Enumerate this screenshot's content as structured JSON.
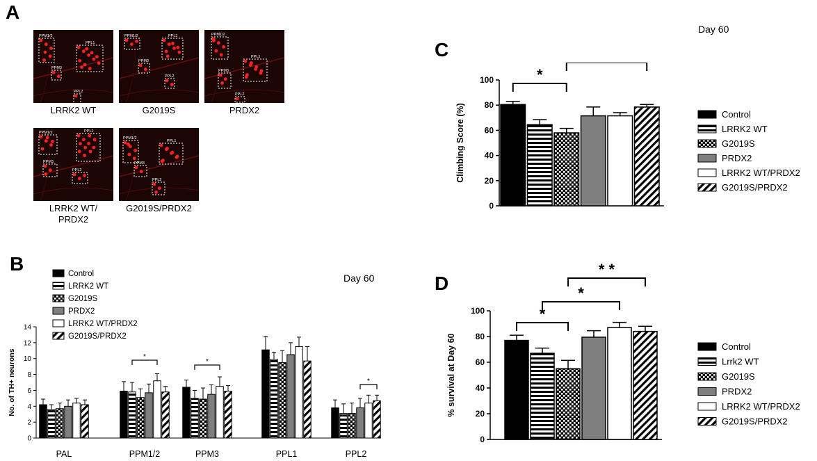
{
  "panels": {
    "a": {
      "letter": "A"
    },
    "b": {
      "letter": "B",
      "day_label": "Day 60"
    },
    "c": {
      "letter": "C",
      "day_label": "Day 60"
    },
    "d": {
      "letter": "D"
    }
  },
  "images": [
    {
      "caption": "LRRK2 WT",
      "labels": [
        "PPM1/2",
        "PPL1",
        "PPM3",
        "PPL2"
      ]
    },
    {
      "caption": "G2019S",
      "labels": [
        "PPM1/2",
        "PPL1",
        "PPM3",
        "PPL2"
      ]
    },
    {
      "caption": "PRDX2",
      "labels": [
        "PPM1/2",
        "PPL1",
        "PPM3",
        "PPL2"
      ]
    },
    {
      "caption": "LRRK2 WT/\nPRDX2",
      "labels": [
        "PPM1/2",
        "PPL1",
        "PPM3",
        "PPL2"
      ]
    },
    {
      "caption": "G2019S/PRDX2",
      "labels": [
        "PPM1/2",
        "PPL1",
        "PPM3",
        "PPL2"
      ]
    }
  ],
  "colors": {
    "black": "#000000",
    "gray": "#7f7f7f",
    "white": "#ffffff",
    "signal_red": "#ff2020"
  },
  "chart_data": [
    {
      "id": "B",
      "type": "bar",
      "ylabel": "No. of TH+ neurons",
      "ylim": [
        0,
        14
      ],
      "yticks": [
        0,
        2,
        4,
        6,
        8,
        10,
        12,
        14
      ],
      "categories": [
        "PAL",
        "PPM1/2",
        "PPM3",
        "PPL1",
        "PPL2"
      ],
      "series": [
        {
          "name": "Control",
          "pattern": "black",
          "values": [
            4.2,
            5.9,
            6.4,
            11.1,
            3.8
          ],
          "errors": [
            0.7,
            1.2,
            0.9,
            1.7,
            1.0
          ]
        },
        {
          "name": "LRRK2 WT",
          "pattern": "hstripe",
          "values": [
            3.6,
            5.8,
            5.0,
            9.9,
            3.1
          ],
          "errors": [
            0.6,
            1.2,
            1.0,
            0.9,
            1.2
          ]
        },
        {
          "name": "G2019S",
          "pattern": "check",
          "values": [
            3.7,
            5.1,
            4.9,
            9.5,
            3.1
          ],
          "errors": [
            0.7,
            1.1,
            1.4,
            1.5,
            1.3
          ]
        },
        {
          "name": "PRDX2",
          "pattern": "gray",
          "values": [
            4.0,
            5.7,
            5.5,
            10.5,
            3.8
          ],
          "errors": [
            0.8,
            1.1,
            1.2,
            1.5,
            1.2
          ]
        },
        {
          "name": "LRRK2 WT/PRDX2",
          "pattern": "white",
          "values": [
            4.4,
            7.2,
            6.5,
            11.5,
            4.4
          ],
          "errors": [
            0.6,
            0.9,
            1.2,
            1.2,
            1.0
          ]
        },
        {
          "name": "G2019S/PRDX2",
          "pattern": "dstripe",
          "values": [
            4.2,
            5.8,
            5.9,
            9.7,
            4.7
          ],
          "errors": [
            0.6,
            0.7,
            0.7,
            1.8,
            0.7
          ]
        }
      ],
      "significance": [
        {
          "category": 1,
          "from": 1,
          "to": 4,
          "label": "*"
        },
        {
          "category": 2,
          "from": 1,
          "to": 4,
          "label": "*"
        },
        {
          "category": 4,
          "from": 3,
          "to": 5,
          "label": "*"
        }
      ]
    },
    {
      "id": "C",
      "type": "bar",
      "ylabel": "Climbing Score (%)",
      "ylim": [
        0,
        100
      ],
      "yticks": [
        0,
        20,
        40,
        60,
        80,
        100
      ],
      "categories": [
        "Control",
        "LRRK2 WT",
        "G2019S",
        "PRDX2",
        "LRRK2 WT/PRDX2",
        "G2019S/PRDX2"
      ],
      "patterns": [
        "black",
        "hstripe",
        "check",
        "gray",
        "white",
        "dstripe"
      ],
      "values": [
        80.5,
        64.5,
        58.0,
        71.5,
        71.5,
        78.5
      ],
      "errors": [
        2.5,
        4.0,
        3.5,
        7.0,
        2.5,
        2.0
      ],
      "significance": [
        {
          "from": 0,
          "to": 2,
          "label": "*"
        },
        {
          "from": 2,
          "to": 5,
          "label": "*"
        }
      ]
    },
    {
      "id": "D",
      "type": "bar",
      "ylabel": "% survival at Day 60",
      "ylim": [
        0,
        100
      ],
      "yticks": [
        0,
        20,
        40,
        60,
        80,
        100
      ],
      "categories": [
        "Control",
        "Lrrk2 WT",
        "G2019S",
        "PRDX2",
        "LRRK2 WT/PRDX2",
        "G2019S/PRDX2"
      ],
      "patterns": [
        "black",
        "hstripe",
        "check",
        "gray",
        "white",
        "dstripe"
      ],
      "values": [
        77.0,
        67.0,
        55.0,
        79.5,
        87.0,
        84.0
      ],
      "errors": [
        4.0,
        4.0,
        6.5,
        5.0,
        4.0,
        4.0
      ],
      "significance": [
        {
          "from": 0,
          "to": 2,
          "label": "*"
        },
        {
          "from": 1,
          "to": 4,
          "label": "*"
        },
        {
          "from": 2,
          "to": 5,
          "label": "* *"
        }
      ]
    }
  ]
}
